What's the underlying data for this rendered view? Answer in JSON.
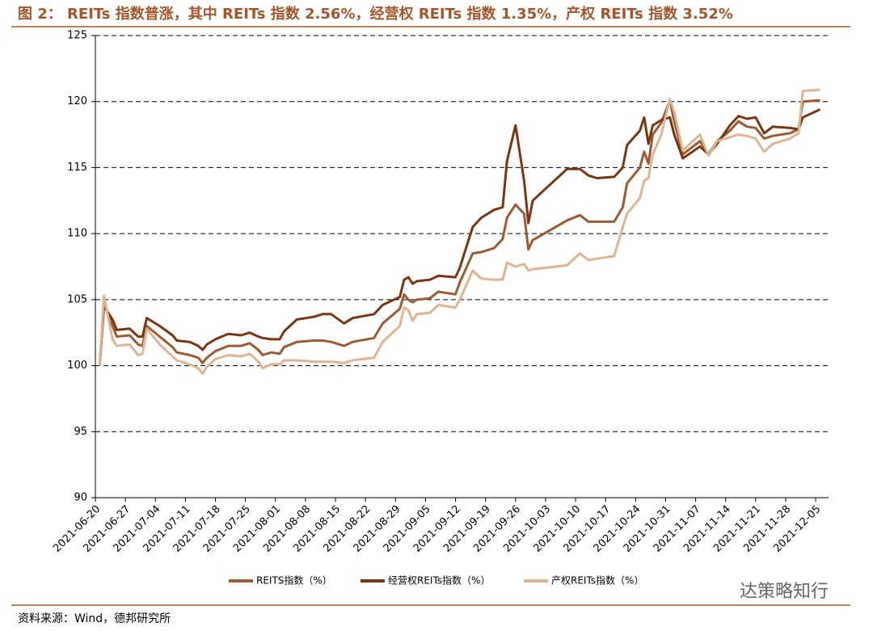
{
  "chart_data": {
    "type": "line",
    "title": "图 2：  REITs 指数普涨，其中 REITs 指数 2.56%，经营权 REITs 指数 1.35%，产权 REITs 指数 3.52%",
    "source": "资料来源：Wind，德邦研究所",
    "watermark": "达策略知行",
    "x": [
      "2021-06-21",
      "2021-06-22",
      "2021-06-24",
      "2021-06-25",
      "2021-06-28",
      "2021-06-30",
      "2021-07-01",
      "2021-07-02",
      "2021-07-05",
      "2021-07-08",
      "2021-07-09",
      "2021-07-12",
      "2021-07-14",
      "2021-07-15",
      "2021-07-16",
      "2021-07-18",
      "2021-07-21",
      "2021-07-24",
      "2021-07-26",
      "2021-07-28",
      "2021-07-29",
      "2021-07-31",
      "2021-08-02",
      "2021-08-03",
      "2021-08-06",
      "2021-08-10",
      "2021-08-12",
      "2021-08-14",
      "2021-08-17",
      "2021-08-19",
      "2021-08-24",
      "2021-08-26",
      "2021-08-30",
      "2021-08-31",
      "2021-09-01",
      "2021-09-02",
      "2021-09-03",
      "2021-09-06",
      "2021-09-08",
      "2021-09-12",
      "2021-09-13",
      "2021-09-16",
      "2021-09-18",
      "2021-09-21",
      "2021-09-23",
      "2021-09-24",
      "2021-09-26",
      "2021-09-28",
      "2021-09-29",
      "2021-09-30",
      "2021-10-08",
      "2021-10-11",
      "2021-10-13",
      "2021-10-15",
      "2021-10-19",
      "2021-10-21",
      "2021-10-22",
      "2021-10-25",
      "2021-10-26",
      "2021-10-27",
      "2021-10-28",
      "2021-10-30",
      "2021-11-01",
      "2021-11-02",
      "2021-11-04",
      "2021-11-08",
      "2021-11-10",
      "2021-11-12",
      "2021-11-15",
      "2021-11-17",
      "2021-11-19",
      "2021-11-21",
      "2021-11-23",
      "2021-11-25",
      "2021-11-29",
      "2021-12-01",
      "2021-12-02",
      "2021-12-06"
    ],
    "series": [
      {
        "name": "REITS指数（%）",
        "color": "#9c5b33",
        "values": [
          100,
          104.8,
          103,
          102.2,
          102.3,
          101.6,
          101.5,
          103,
          102.2,
          101.4,
          101,
          100.8,
          100.6,
          100.2,
          100.6,
          101.1,
          101.5,
          101.5,
          101.7,
          101.2,
          100.8,
          101,
          100.9,
          101.4,
          101.8,
          101.9,
          101.9,
          101.8,
          101.5,
          101.8,
          102.1,
          103.2,
          104.3,
          105.4,
          105,
          104.8,
          105,
          105.1,
          105.6,
          105.4,
          106.3,
          108.5,
          108.6,
          108.9,
          109.6,
          111.2,
          112.2,
          111.5,
          108.8,
          109.5,
          111,
          111.4,
          110.9,
          110.9,
          110.9,
          112,
          113.8,
          115,
          116.2,
          115.3,
          117.5,
          118.4,
          120.1,
          118.5,
          116,
          117,
          116,
          117,
          117.8,
          118.5,
          118.1,
          118,
          117.2,
          117.4,
          117.6,
          117.9,
          120,
          120.1
        ]
      },
      {
        "name": "经营权REITs指数（%）",
        "color": "#7b3512",
        "values": [
          100,
          104.5,
          103.5,
          102.7,
          102.8,
          102.2,
          102.2,
          103.6,
          103,
          102.3,
          101.9,
          101.8,
          101.5,
          101.2,
          101.6,
          102,
          102.4,
          102.3,
          102.5,
          102.2,
          102.1,
          102,
          102,
          102.6,
          103.5,
          103.7,
          103.9,
          103.9,
          103.2,
          103.6,
          103.9,
          104.6,
          105.2,
          106.5,
          106.7,
          106.2,
          106.4,
          106.5,
          106.8,
          106.7,
          107.4,
          110.5,
          111.2,
          111.8,
          112,
          115.5,
          118.2,
          114,
          110.8,
          112.5,
          114.9,
          114.9,
          114.4,
          114.2,
          114.3,
          115,
          116.7,
          117.8,
          118.8,
          116.8,
          118.2,
          118.6,
          118.8,
          117.5,
          115.7,
          116.6,
          116,
          116.8,
          118.2,
          118.9,
          118.7,
          118.8,
          117.6,
          118.1,
          118,
          117.9,
          118.8,
          119.4
        ]
      },
      {
        "name": "产权REITs指数（%）",
        "color": "#ddb593",
        "values": [
          100,
          105.3,
          102,
          101.5,
          101.6,
          100.8,
          100.9,
          102.8,
          101.6,
          100.7,
          100.4,
          100.1,
          99.8,
          99.4,
          99.9,
          100.5,
          100.8,
          100.7,
          100.9,
          100.3,
          99.8,
          100.1,
          100.1,
          100.4,
          100.4,
          100.3,
          100.3,
          100.3,
          100.2,
          100.4,
          100.6,
          101.8,
          103,
          104.4,
          104.2,
          103.4,
          103.9,
          104,
          104.6,
          104.4,
          105,
          107.2,
          106.6,
          106.5,
          106.5,
          107.8,
          107.5,
          107.7,
          107.2,
          107.3,
          107.6,
          108.5,
          108,
          108.1,
          108.3,
          110.5,
          111.5,
          112.7,
          114,
          114.2,
          116,
          117.5,
          120.2,
          119.2,
          116.3,
          117.5,
          115.9,
          117,
          117.3,
          117.5,
          117.4,
          117.2,
          116.2,
          116.8,
          117.2,
          117.6,
          120.8,
          120.9
        ]
      }
    ],
    "xlim": [
      "2021-06-20",
      "2021-12-08"
    ],
    "xticks": [
      "2021-06-20",
      "2021-06-27",
      "2021-07-04",
      "2021-07-11",
      "2021-07-18",
      "2021-07-25",
      "2021-08-01",
      "2021-08-08",
      "2021-08-15",
      "2021-08-22",
      "2021-08-29",
      "2021-09-05",
      "2021-09-12",
      "2021-09-19",
      "2021-09-26",
      "2021-10-03",
      "2021-10-10",
      "2021-10-17",
      "2021-10-24",
      "2021-10-31",
      "2021-11-07",
      "2021-11-14",
      "2021-11-21",
      "2021-11-28",
      "2021-12-05"
    ],
    "ylim": [
      90,
      125
    ],
    "yticks": [
      90,
      95,
      100,
      105,
      110,
      115,
      120,
      125
    ],
    "grid": true
  }
}
